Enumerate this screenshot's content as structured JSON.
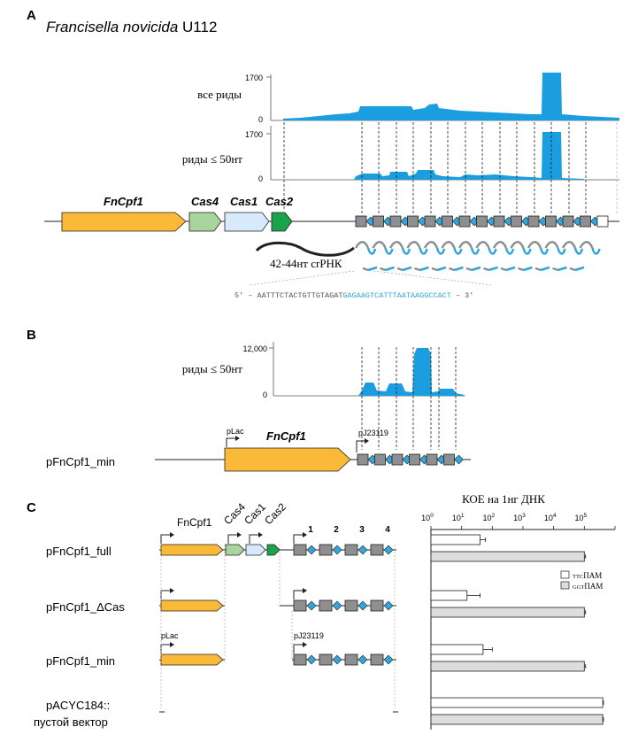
{
  "panel_a": {
    "letter": "A",
    "species_italic": "Francisella novicida",
    "species_strain": " U112",
    "track1_label": "все риды",
    "track2_label": "риды ≤ 50нт",
    "axis_max": "1700",
    "axis_min": "0",
    "genes": [
      "FnCpf1",
      "Cas4",
      "Cas1",
      "Cas2"
    ],
    "crRNA_label": "42-44нт crРНК",
    "seq_prefix": "5' – AATTTCTACTGTTGTAGAT",
    "seq_spacer": "GAGAAGTCATTTAATAAGGCCACT",
    "seq_suffix": " – 3'"
  },
  "panel_b": {
    "letter": "B",
    "track_label": "риды ≤ 50нт",
    "axis_max": "12,000",
    "axis_min": "0",
    "construct": "pFnCpf1_min",
    "promoter1": "pLac",
    "promoter2": "pJ23119",
    "gene": "FnCpf1"
  },
  "panel_c": {
    "letter": "C",
    "genes": [
      "FnCpf1",
      "Cas4",
      "Cas1",
      "Cas2"
    ],
    "spacers": [
      "1",
      "2",
      "3",
      "4"
    ],
    "promoter1": "pLac",
    "promoter2": "pJ23119",
    "constructs": [
      "pFnCpf1_full",
      "pFnCpf1_ΔCas",
      "pFnCpf1_min",
      "pACYC184::"
    ],
    "construct4_line2": "пустой вектор",
    "chart_title": "КОЕ на 1нг ДНК",
    "tick_labels": [
      "10",
      "10",
      "10",
      "10",
      "10",
      "10"
    ],
    "tick_exps": [
      "0",
      "1",
      "2",
      "3",
      "4",
      "5"
    ],
    "legend": [
      {
        "small": "TTC",
        "text": "ПАМ",
        "color": "#ffffff"
      },
      {
        "small": "GGT",
        "text": "ПАМ",
        "color": "#dcdddd"
      }
    ]
  },
  "colors": {
    "cpf1": "#fbb938",
    "cas4": "#a8d59b",
    "cas1": "#d7eafb",
    "cas2": "#1aa34a",
    "repeat": "#8e8f91",
    "spacer": "#2fa6dc",
    "reads": "#1a9ee0"
  },
  "chart_data": {
    "type": "bar",
    "title": "КОЕ на 1нг ДНК",
    "xscale": "log",
    "xlim": [
      1,
      1000000
    ],
    "categories": [
      "pFnCpf1_full",
      "pFnCpf1_ΔCas",
      "pFnCpf1_min",
      "pACYC184::пустой вектор"
    ],
    "series": [
      {
        "name": "TTCПАМ",
        "values": [
          40,
          15,
          50,
          400000
        ],
        "errors": [
          60,
          40,
          100,
          420000
        ]
      },
      {
        "name": "GGTПАМ",
        "values": [
          100000,
          100000,
          100000,
          400000
        ],
        "errors": [
          110000,
          110000,
          110000,
          420000
        ]
      }
    ]
  }
}
